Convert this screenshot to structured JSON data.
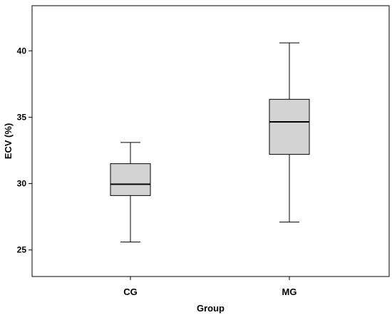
{
  "chart_data": {
    "type": "boxplot",
    "title": "",
    "xlabel": "Group",
    "ylabel": "ECV (%)",
    "categories": [
      "CG",
      "MG"
    ],
    "boxes": [
      {
        "category": "CG",
        "min": 25.6,
        "q1": 29.1,
        "median": 29.95,
        "q3": 31.5,
        "max": 33.1
      },
      {
        "category": "MG",
        "min": 27.1,
        "q1": 32.2,
        "median": 34.65,
        "q3": 36.35,
        "max": 40.6
      }
    ],
    "ylim": [
      23.0,
      43.4
    ],
    "yticks": [
      "25",
      "30",
      "35",
      "40"
    ],
    "grid": false,
    "legend": "none",
    "colors": {
      "box_fill": "#d3d3d3",
      "stroke": "#000000",
      "background": "#ffffff"
    }
  }
}
